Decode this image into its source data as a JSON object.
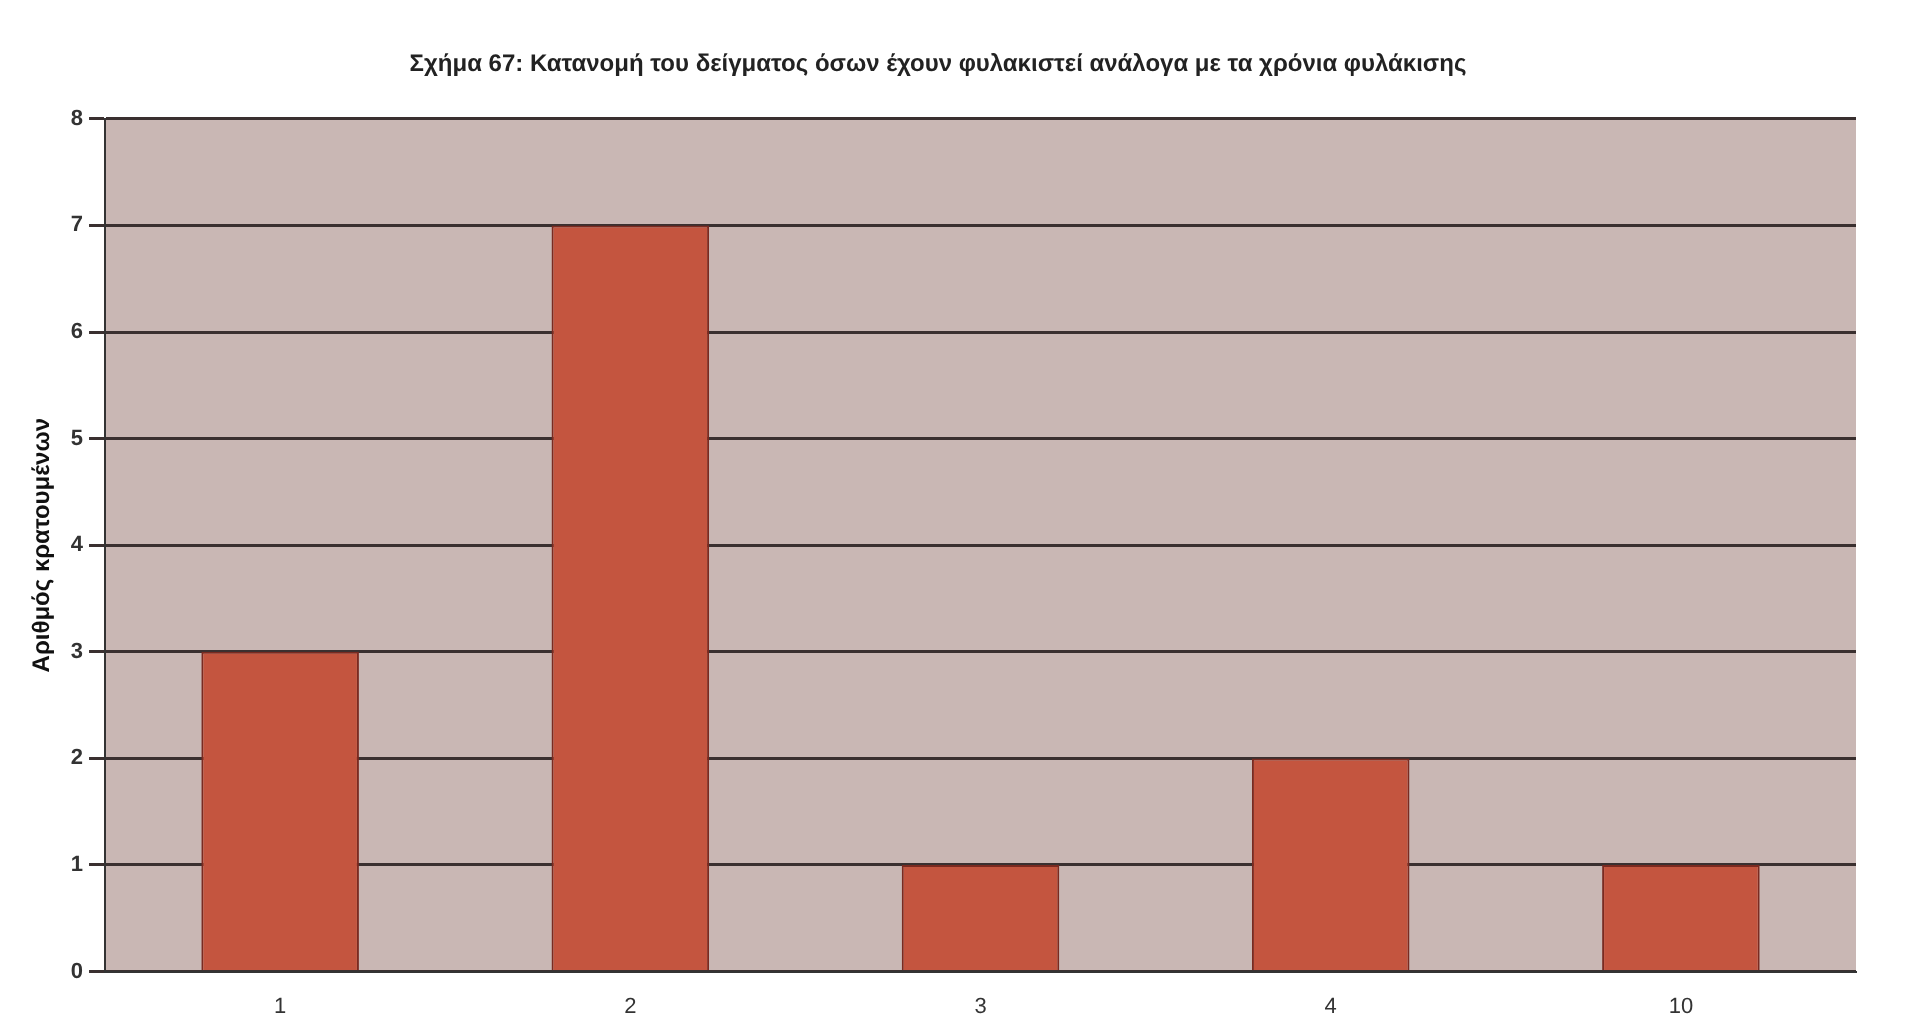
{
  "chart_data": {
    "type": "bar",
    "title": "Σχήμα 67: Κατανομή του δείγματος όσων έχουν φυλακιστεί ανάλογα με τα χρόνια φυλάκισης",
    "ylabel": "Αριθμός κρατουμένων",
    "categories": [
      "1",
      "2",
      "3",
      "4",
      "10"
    ],
    "values": [
      3,
      7,
      1,
      2,
      1
    ],
    "color": "#c4553f",
    "ylim": [
      0,
      8
    ],
    "yticks": [
      0,
      1,
      2,
      3,
      4,
      5,
      6,
      7,
      8
    ],
    "grid": "y"
  }
}
